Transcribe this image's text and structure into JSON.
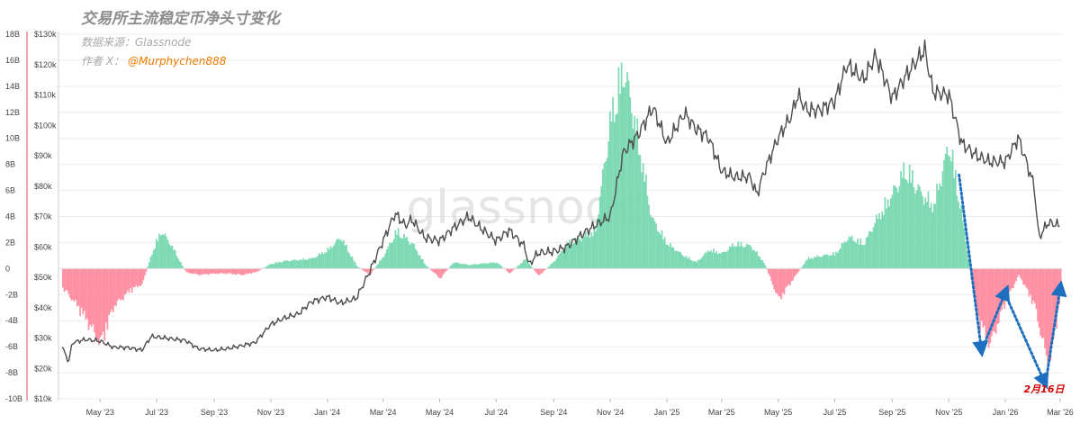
{
  "title": "交易所主流稳定币净头寸变化",
  "subtitle": "数据来源：Glassnode",
  "author_label": "作者 X：",
  "author_handle": "@Murphychen888",
  "watermark": "glassnode",
  "annotation": "2月16日",
  "colors": {
    "positive": "#7dd9b3",
    "negative": "#ff8fa3",
    "price": "#4d4d4d",
    "arrow": "#1f6fc0",
    "left_axis": "#e8667f"
  },
  "chart_data": {
    "type": "area",
    "xlabel": "",
    "ylabel": "",
    "grid": true,
    "x_ticks": [
      "May '23",
      "Jul '23",
      "Sep '23",
      "Nov '23",
      "Jan '24",
      "Mar '24",
      "May '24",
      "Jul '24",
      "Sep '24",
      "Nov '24",
      "Jan '25",
      "Mar '25",
      "May '25",
      "Jul '25",
      "Sep '25",
      "Nov '25",
      "Jan '26",
      "Mar '26"
    ],
    "left_axis": {
      "ticks": [
        "18B",
        "16B",
        "14B",
        "12B",
        "10B",
        "8B",
        "6B",
        "4B",
        "2B",
        "0",
        "-2B",
        "-4B",
        "-6B",
        "-8B",
        "-10B"
      ],
      "ylim": [
        -10,
        18
      ]
    },
    "right_axis": {
      "ticks": [
        "$130k",
        "$120k",
        "$110k",
        "$100k",
        "$90k",
        "$80k",
        "$70k",
        "$60k",
        "$50k",
        "$40k",
        "$30k",
        "$20k",
        "$10k"
      ],
      "ylim": [
        10000,
        130000
      ]
    },
    "series": [
      {
        "axis": "left",
        "x": [
          "2023-03-20",
          "2023-04-01",
          "2023-04-15",
          "2023-05-01",
          "2023-05-15",
          "2023-06-01",
          "2023-06-15",
          "2023-06-25",
          "2023-07-05",
          "2023-07-15",
          "2023-08-01",
          "2023-08-15",
          "2023-09-01",
          "2023-09-15",
          "2023-10-01",
          "2023-10-15",
          "2023-11-01",
          "2023-11-15",
          "2023-12-01",
          "2023-12-15",
          "2024-01-01",
          "2024-01-15",
          "2024-02-01",
          "2024-02-15",
          "2024-03-01",
          "2024-03-15",
          "2024-04-01",
          "2024-04-15",
          "2024-05-01",
          "2024-05-15",
          "2024-06-01",
          "2024-06-15",
          "2024-07-01",
          "2024-07-15",
          "2024-08-01",
          "2024-08-15",
          "2024-09-01",
          "2024-09-15",
          "2024-10-01",
          "2024-10-15",
          "2024-11-01",
          "2024-11-15",
          "2024-12-01",
          "2024-12-15",
          "2025-01-01",
          "2025-01-15",
          "2025-02-01",
          "2025-02-15",
          "2025-03-01",
          "2025-03-15",
          "2025-04-01",
          "2025-04-15",
          "2025-05-01",
          "2025-05-15",
          "2025-06-01",
          "2025-06-15",
          "2025-07-01",
          "2025-07-15",
          "2025-08-01",
          "2025-08-15",
          "2025-09-01",
          "2025-09-15",
          "2025-10-01",
          "2025-10-15",
          "2025-11-01",
          "2025-11-15",
          "2025-12-01",
          "2025-12-15",
          "2026-01-01",
          "2026-01-15",
          "2026-02-01",
          "2026-02-16",
          "2026-03-01"
        ],
        "values": [
          -1.5,
          -2.5,
          -4,
          -6,
          -3,
          -1.8,
          -1.2,
          1.2,
          3,
          2,
          -0.3,
          -0.5,
          -0.4,
          -0.4,
          -0.5,
          -0.3,
          0.4,
          0.6,
          0.7,
          0.8,
          1.5,
          2.5,
          0.2,
          -0.5,
          1,
          3,
          2,
          0.3,
          -0.8,
          0.5,
          0.3,
          0.4,
          0.5,
          -0.4,
          0.8,
          -0.6,
          0.6,
          2,
          2.5,
          3,
          12,
          16,
          10,
          4,
          2,
          1.2,
          0.5,
          1.5,
          1.2,
          2,
          1.8,
          0.5,
          -2.5,
          -1,
          0.8,
          1,
          1.2,
          2.5,
          2,
          4,
          6,
          8,
          6,
          5,
          10,
          4,
          -4,
          -6,
          -2.5,
          -0.5,
          -3,
          -8,
          -2
        ]
      },
      {
        "axis": "right",
        "x": [
          "2023-03-20",
          "2023-03-28",
          "2023-04-01",
          "2023-04-15",
          "2023-05-01",
          "2023-05-15",
          "2023-06-01",
          "2023-06-15",
          "2023-06-25",
          "2023-07-05",
          "2023-07-15",
          "2023-08-01",
          "2023-08-15",
          "2023-09-01",
          "2023-09-15",
          "2023-10-01",
          "2023-10-15",
          "2023-11-01",
          "2023-11-15",
          "2023-12-01",
          "2023-12-15",
          "2024-01-01",
          "2024-01-15",
          "2024-02-01",
          "2024-02-15",
          "2024-03-01",
          "2024-03-14",
          "2024-03-25",
          "2024-04-01",
          "2024-04-15",
          "2024-05-01",
          "2024-05-15",
          "2024-06-01",
          "2024-06-15",
          "2024-07-01",
          "2024-07-15",
          "2024-08-01",
          "2024-08-05",
          "2024-08-15",
          "2024-09-01",
          "2024-09-15",
          "2024-10-01",
          "2024-10-15",
          "2024-11-01",
          "2024-11-15",
          "2024-12-01",
          "2024-12-17",
          "2025-01-01",
          "2025-01-20",
          "2025-02-01",
          "2025-02-15",
          "2025-03-01",
          "2025-03-15",
          "2025-04-01",
          "2025-04-08",
          "2025-04-15",
          "2025-05-01",
          "2025-05-15",
          "2025-05-22",
          "2025-06-01",
          "2025-06-15",
          "2025-07-01",
          "2025-07-14",
          "2025-08-01",
          "2025-08-14",
          "2025-09-01",
          "2025-09-15",
          "2025-10-06",
          "2025-10-15",
          "2025-11-01",
          "2025-11-15",
          "2025-12-01",
          "2025-12-15",
          "2026-01-01",
          "2026-01-15",
          "2026-02-01",
          "2026-02-06",
          "2026-02-16",
          "2026-03-01"
        ],
        "values": [
          28000,
          22000,
          28500,
          29500,
          29000,
          27000,
          26800,
          26000,
          30500,
          30200,
          29800,
          29200,
          26500,
          26000,
          26500,
          27500,
          28500,
          34500,
          36500,
          38000,
          42000,
          43500,
          41500,
          43000,
          51500,
          62000,
          71000,
          67000,
          69000,
          63000,
          62000,
          66000,
          70000,
          66000,
          62000,
          65500,
          60000,
          54000,
          58000,
          58500,
          60000,
          64000,
          67000,
          70000,
          91000,
          97000,
          106000,
          94000,
          104000,
          99000,
          96000,
          85000,
          83000,
          83000,
          77000,
          84000,
          96000,
          103000,
          110000,
          105000,
          105000,
          108000,
          120000,
          115000,
          123000,
          109000,
          116000,
          125000,
          111000,
          110000,
          94000,
          90000,
          88000,
          88000,
          96000,
          80000,
          63000,
          68000,
          67000
        ]
      }
    ],
    "annotations": [
      {
        "text": "2月16日",
        "x": "2026-02-16",
        "y": -9.5,
        "axis": "left"
      }
    ],
    "arrows": [
      {
        "from": {
          "x": "2025-11-12",
          "y": 7.2
        },
        "to": {
          "x": "2025-12-06",
          "y": -6.2
        }
      },
      {
        "from": {
          "x": "2025-12-08",
          "y": -6
        },
        "to": {
          "x": "2026-01-01",
          "y": -1.8
        }
      },
      {
        "from": {
          "x": "2026-01-01",
          "y": -2
        },
        "to": {
          "x": "2026-02-12",
          "y": -8.7
        }
      },
      {
        "from": {
          "x": "2026-02-14",
          "y": -8.5
        },
        "to": {
          "x": "2026-03-01",
          "y": -1.5
        }
      }
    ]
  }
}
